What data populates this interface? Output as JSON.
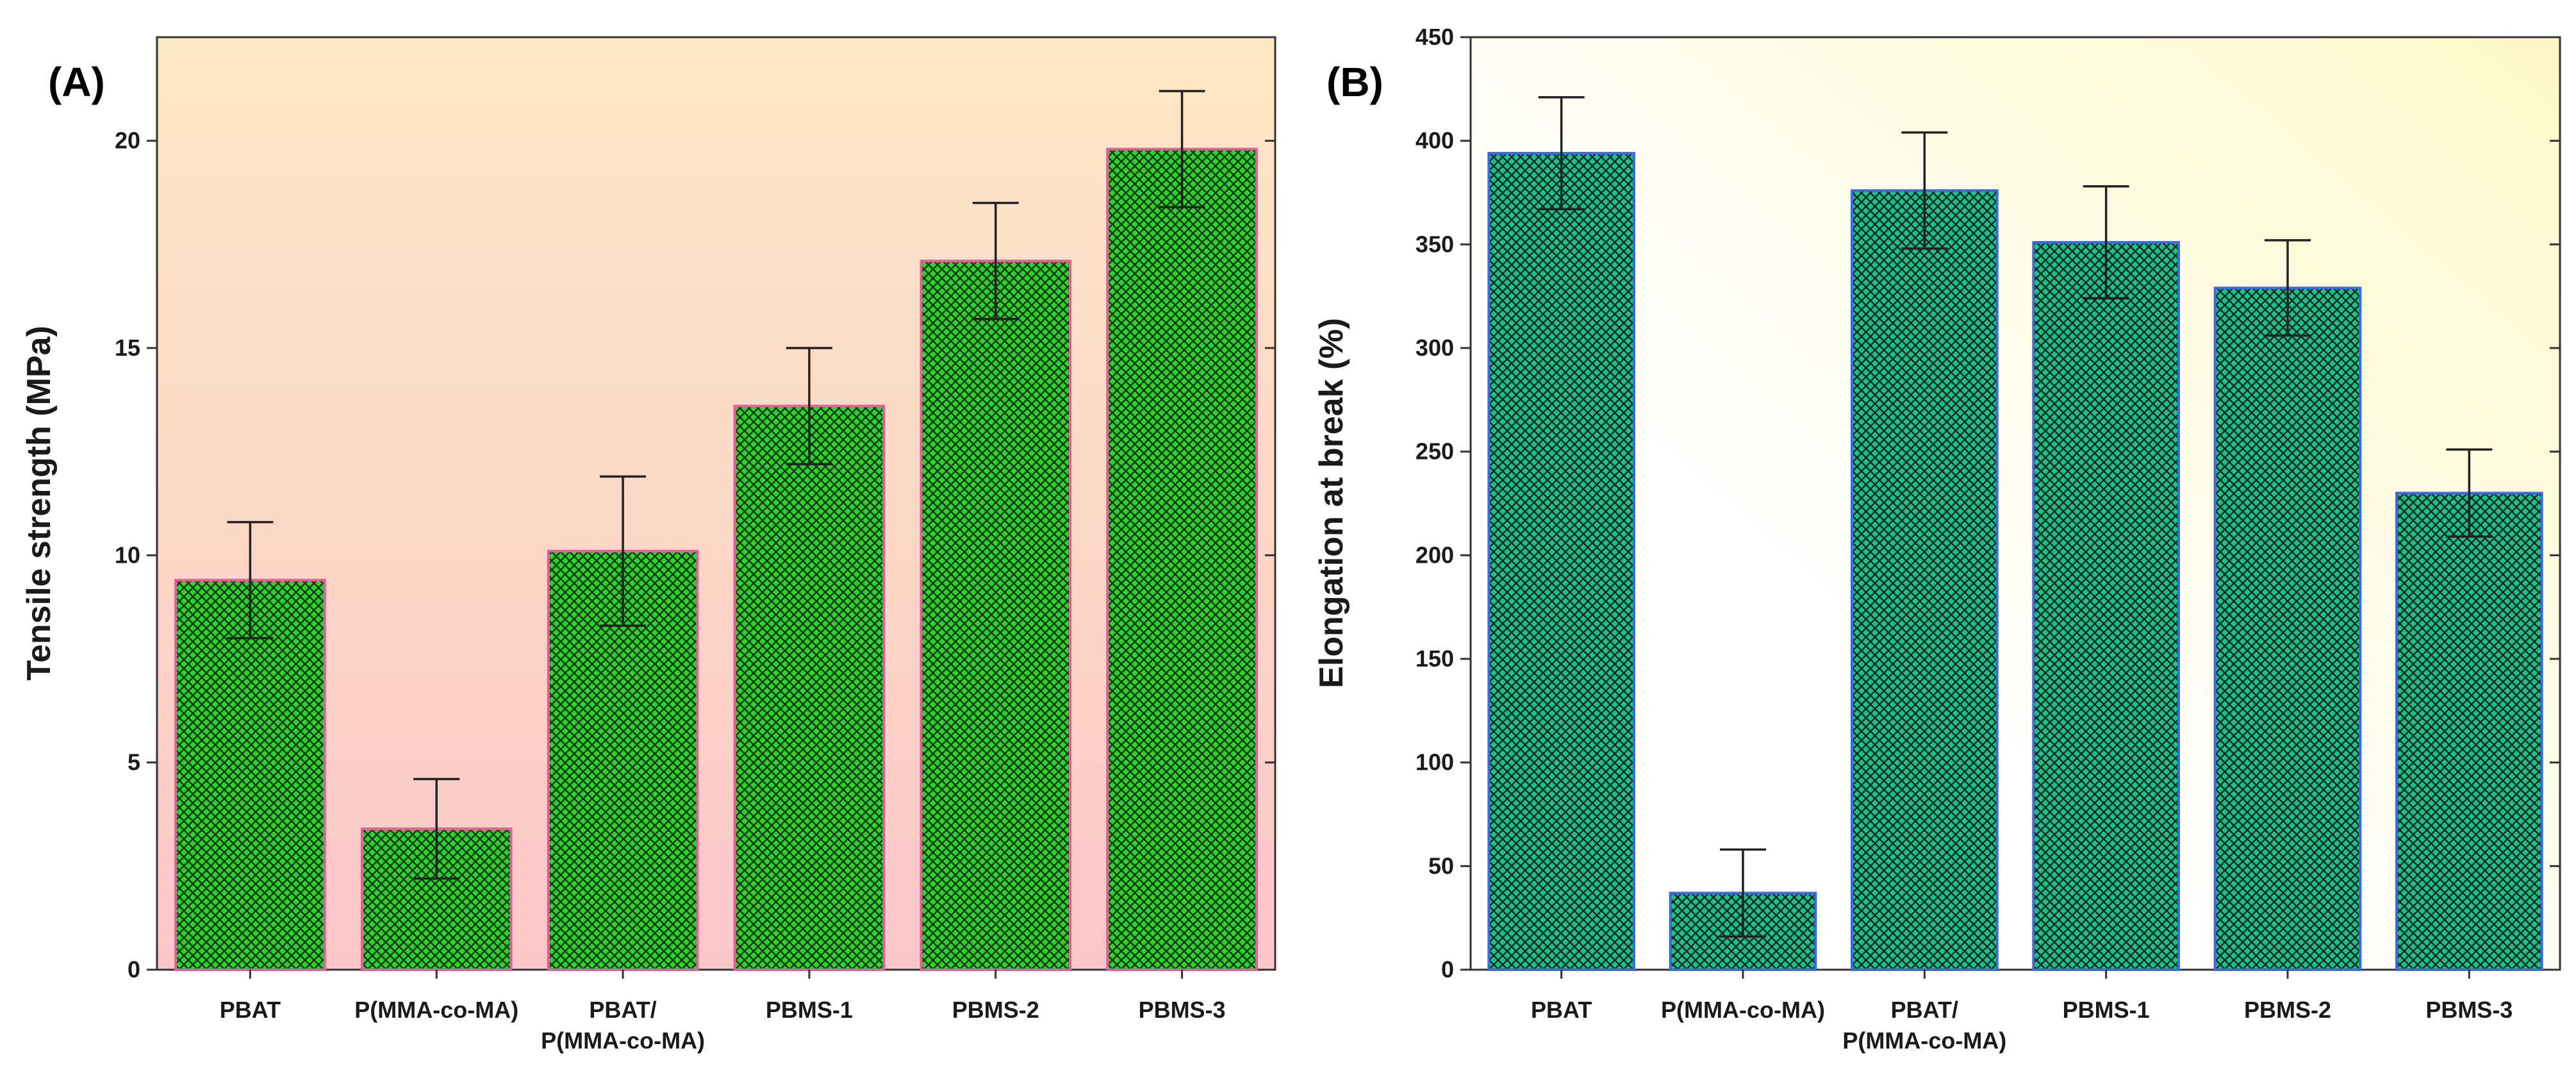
{
  "panels": [
    {
      "id": "A",
      "panel_label": "(A)",
      "ylabel": "Tensile strength (MPa)",
      "yticks": [
        "0",
        "5",
        "10",
        "15",
        "20"
      ],
      "colors": {
        "bar_fill": "#2fd02f",
        "bar_hatch": "#0d3d0d",
        "bar_edge": "#e0609a",
        "bg_top": "#fde8c4",
        "bg_bottom": "#fbc6c8"
      }
    },
    {
      "id": "B",
      "panel_label": "(B)",
      "ylabel": "Elongation at  break (%)",
      "yticks": [
        "0",
        "50",
        "100",
        "150",
        "200",
        "250",
        "300",
        "350",
        "400",
        "450"
      ],
      "colors": {
        "bar_fill": "#1fbf8a",
        "bar_hatch": "#0c2e26",
        "bar_edge": "#3d6ad8",
        "bg_top": "#fff7c8",
        "bg_bottom": "#ffffff"
      }
    }
  ],
  "chart_data": [
    {
      "type": "bar",
      "title": "(A)",
      "categories": [
        "PBAT",
        "P(MMA-co-MA)",
        "PBAT/\nP(MMA-co-MA)",
        "PBMS-1",
        "PBMS-2",
        "PBMS-3"
      ],
      "values": [
        9.4,
        3.4,
        10.1,
        13.6,
        17.1,
        19.8
      ],
      "errors": [
        1.4,
        1.2,
        1.8,
        1.4,
        1.4,
        1.4
      ],
      "xlabel": "",
      "ylabel": "Tensile strength (MPa)",
      "ylim": [
        0,
        22.5
      ],
      "grid": false
    },
    {
      "type": "bar",
      "title": "(B)",
      "categories": [
        "PBAT",
        "P(MMA-co-MA)",
        "PBAT/\nP(MMA-co-MA)",
        "PBMS-1",
        "PBMS-2",
        "PBMS-3"
      ],
      "values": [
        394,
        37,
        376,
        351,
        329,
        230
      ],
      "errors": [
        27,
        21,
        28,
        27,
        23,
        21
      ],
      "xlabel": "",
      "ylabel": "Elongation at  break (%)",
      "ylim": [
        0,
        450
      ],
      "grid": false
    }
  ]
}
